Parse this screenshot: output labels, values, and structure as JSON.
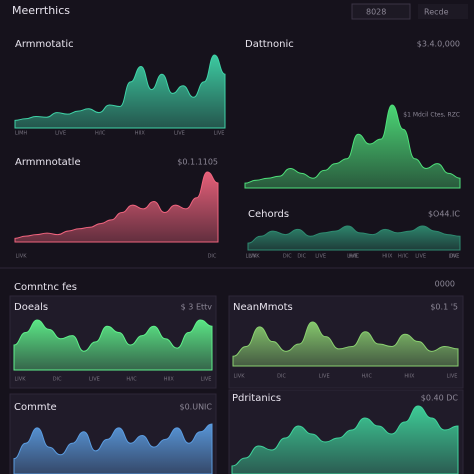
{
  "header": {
    "title": "Meerrthics",
    "search": "8028",
    "dropdown": "Recde"
  },
  "section": {
    "title": "Comntnc fes",
    "value": "0000"
  },
  "panels": [
    {
      "title": "Armmotatic",
      "color": "#3fd4a8",
      "values": [
        10,
        12,
        15,
        14,
        20,
        18,
        22,
        25,
        20,
        30,
        28,
        60,
        80,
        50,
        70,
        45,
        55,
        40,
        60,
        95,
        70
      ],
      "x_labels": [
        "LIMH",
        "LIVE",
        "H/IC",
        "HIIX",
        "LIVE",
        "LIVE"
      ]
    },
    {
      "title": "Dattnonic",
      "value": "$3.4.0,000",
      "subtitle": "$1 Mdcil Ctes, RZC",
      "color": "#4ee07a",
      "values": [
        5,
        8,
        10,
        12,
        20,
        15,
        10,
        18,
        25,
        30,
        55,
        45,
        50,
        85,
        60,
        30,
        20,
        25,
        15,
        10
      ],
      "x_labels": [
        "LIVK",
        "DIC",
        "LIVE",
        "H/IC",
        "LIVE"
      ]
    },
    {
      "title": "Armmnotatle",
      "value": "$0.1.1105",
      "color": "#f0647e",
      "values": [
        5,
        8,
        10,
        12,
        10,
        15,
        18,
        20,
        25,
        30,
        40,
        50,
        45,
        55,
        40,
        50,
        45,
        60,
        95,
        80
      ],
      "x_labels": [
        "LIVK",
        "DIC"
      ]
    },
    {
      "title": "Cehords",
      "value": "$O44.IC",
      "color": "#2e8a70",
      "values": [
        20,
        40,
        55,
        45,
        60,
        40,
        50,
        55,
        70,
        50,
        45,
        60,
        50,
        55,
        70,
        55,
        45,
        40
      ],
      "x_labels": [
        "LIVK",
        "DIC",
        "LIVE",
        "H/IC",
        "HIIX",
        "LIVE",
        "DIC"
      ]
    },
    {
      "title": "Doeals",
      "value": "$ 3 Ettv",
      "color": "#5ef08a",
      "values": [
        40,
        60,
        80,
        65,
        50,
        55,
        30,
        45,
        70,
        60,
        40,
        55,
        70,
        50,
        35,
        60,
        80,
        70
      ],
      "x_labels": [
        "LIVK",
        "DIC",
        "LIVE",
        "H/IC",
        "HIIX",
        "LIVE"
      ]
    },
    {
      "title": "NeanMmots",
      "value": "$0.1 '5",
      "color": "#8ad070",
      "values": [
        20,
        40,
        80,
        50,
        30,
        45,
        90,
        60,
        35,
        40,
        70,
        45,
        40,
        65,
        50,
        30,
        40,
        35
      ],
      "x_labels": [
        "LIVK",
        "DIC",
        "LIVE",
        "H/IC",
        "HIIX",
        "LIVE"
      ]
    },
    {
      "title": "Commte",
      "value": "$0.UNIC",
      "color": "#5b9ce0",
      "values": [
        20,
        40,
        60,
        35,
        25,
        40,
        55,
        30,
        45,
        60,
        40,
        50,
        35,
        45,
        60,
        40,
        55,
        65
      ],
      "x_labels": []
    },
    {
      "title": "Pdritanics",
      "value": "$0.40 DC",
      "color": "#3fd49c",
      "values": [
        10,
        20,
        35,
        30,
        45,
        60,
        50,
        40,
        45,
        55,
        70,
        60,
        50,
        65,
        85,
        70,
        55,
        60
      ],
      "x_labels": []
    }
  ]
}
